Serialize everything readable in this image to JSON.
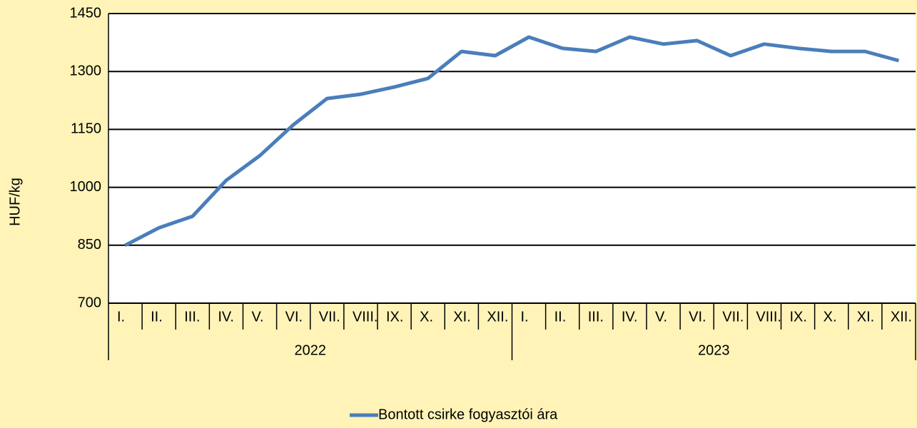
{
  "chart_data": {
    "type": "line",
    "y_label": "HUF/kg",
    "categories": [
      "I.",
      "II.",
      "III.",
      "IV.",
      "V.",
      "VI.",
      "VII.",
      "VIII.",
      "IX.",
      "X.",
      "XI.",
      "XII.",
      "I.",
      "II.",
      "III.",
      "IV.",
      "V.",
      "VI.",
      "VII.",
      "VIII.",
      "IX.",
      "X.",
      "XI.",
      "XII."
    ],
    "category_groups": [
      "2022",
      "2023"
    ],
    "series": [
      {
        "name": "Bontott csirke fogyasztói ára",
        "color": "#4a7ebb",
        "values": [
          850,
          895,
          925,
          1018,
          1082,
          1162,
          1230,
          1241,
          1260,
          1282,
          1352,
          1341,
          1389,
          1360,
          1352,
          1389,
          1371,
          1380,
          1341,
          1371,
          1360,
          1352,
          1352,
          1328
        ]
      }
    ],
    "ylim": [
      700,
      1450
    ],
    "yticks": [
      700,
      850,
      1000,
      1150,
      1300,
      1450
    ],
    "grid": true,
    "legend": "bottom"
  }
}
